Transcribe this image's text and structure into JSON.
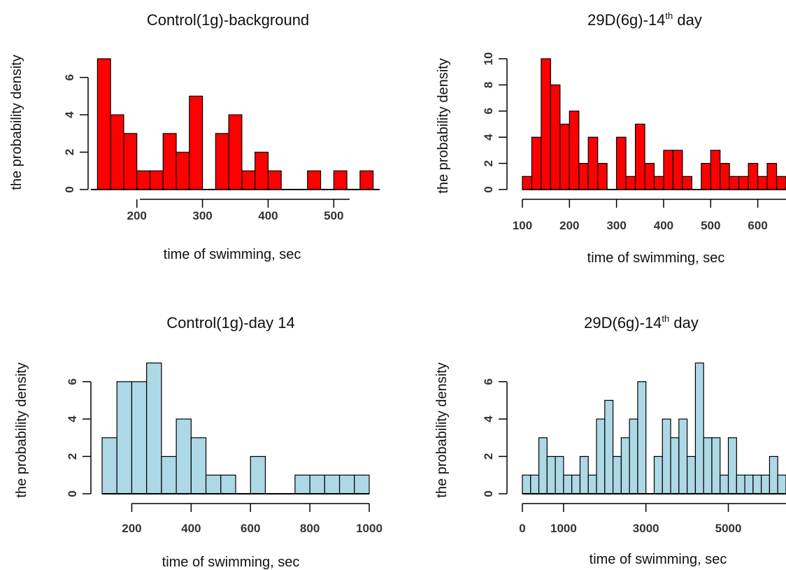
{
  "chart_data": [
    {
      "type": "bar",
      "title_main": "Control(1g)-background",
      "title_sup": "",
      "title_after": "",
      "xlabel": "time of swimming, sec",
      "ylabel": "the probability density",
      "fill": "#ff0000",
      "xlim": [
        130,
        570
      ],
      "ylim": [
        0,
        7
      ],
      "xticks": [
        200,
        300,
        400,
        500
      ],
      "yticks": [
        0,
        2,
        4,
        6
      ],
      "bin_width": 20,
      "bins": [
        {
          "x0": 140,
          "value": 7
        },
        {
          "x0": 160,
          "value": 4
        },
        {
          "x0": 180,
          "value": 3
        },
        {
          "x0": 200,
          "value": 1
        },
        {
          "x0": 220,
          "value": 1
        },
        {
          "x0": 240,
          "value": 3
        },
        {
          "x0": 260,
          "value": 2
        },
        {
          "x0": 280,
          "value": 5
        },
        {
          "x0": 320,
          "value": 3
        },
        {
          "x0": 340,
          "value": 4
        },
        {
          "x0": 360,
          "value": 1
        },
        {
          "x0": 380,
          "value": 2
        },
        {
          "x0": 400,
          "value": 1
        },
        {
          "x0": 460,
          "value": 1
        },
        {
          "x0": 500,
          "value": 1
        },
        {
          "x0": 540,
          "value": 1
        }
      ]
    },
    {
      "type": "bar",
      "title_main": "29D(6g)-14",
      "title_sup": "th",
      "title_after": " day",
      "xlabel": "time of swimming, sec",
      "ylabel": "the probability density",
      "fill": "#ff0000",
      "xlim": [
        100,
        660
      ],
      "ylim": [
        0,
        10
      ],
      "xticks": [
        100,
        200,
        300,
        400,
        500,
        600
      ],
      "yticks": [
        0,
        2,
        4,
        6,
        8,
        10
      ],
      "bin_width": 20,
      "bins": [
        {
          "x0": 100,
          "value": 1
        },
        {
          "x0": 120,
          "value": 4
        },
        {
          "x0": 140,
          "value": 10
        },
        {
          "x0": 160,
          "value": 8
        },
        {
          "x0": 180,
          "value": 5
        },
        {
          "x0": 200,
          "value": 6
        },
        {
          "x0": 220,
          "value": 2
        },
        {
          "x0": 240,
          "value": 4
        },
        {
          "x0": 260,
          "value": 2
        },
        {
          "x0": 300,
          "value": 4
        },
        {
          "x0": 320,
          "value": 1
        },
        {
          "x0": 340,
          "value": 5
        },
        {
          "x0": 360,
          "value": 2
        },
        {
          "x0": 380,
          "value": 1
        },
        {
          "x0": 400,
          "value": 3
        },
        {
          "x0": 420,
          "value": 3
        },
        {
          "x0": 440,
          "value": 1
        },
        {
          "x0": 480,
          "value": 2
        },
        {
          "x0": 500,
          "value": 3
        },
        {
          "x0": 520,
          "value": 2
        },
        {
          "x0": 540,
          "value": 1
        },
        {
          "x0": 560,
          "value": 1
        },
        {
          "x0": 580,
          "value": 2
        },
        {
          "x0": 600,
          "value": 1
        },
        {
          "x0": 620,
          "value": 2
        },
        {
          "x0": 640,
          "value": 1
        }
      ]
    },
    {
      "type": "bar",
      "title_main": "Control(1g)-day 14",
      "title_sup": "",
      "title_after": "",
      "xlabel": "time of swimming, sec",
      "ylabel": "the probability density",
      "fill": "#add8e6",
      "xlim": [
        100,
        1000
      ],
      "ylim": [
        0,
        7
      ],
      "xticks": [
        200,
        400,
        600,
        800,
        1000
      ],
      "yticks": [
        0,
        2,
        4,
        6
      ],
      "bin_width": 50,
      "bins": [
        {
          "x0": 100,
          "value": 3
        },
        {
          "x0": 150,
          "value": 6
        },
        {
          "x0": 200,
          "value": 6
        },
        {
          "x0": 250,
          "value": 7
        },
        {
          "x0": 300,
          "value": 2
        },
        {
          "x0": 350,
          "value": 4
        },
        {
          "x0": 400,
          "value": 3
        },
        {
          "x0": 450,
          "value": 1
        },
        {
          "x0": 500,
          "value": 1
        },
        {
          "x0": 600,
          "value": 2
        },
        {
          "x0": 750,
          "value": 1
        },
        {
          "x0": 800,
          "value": 1
        },
        {
          "x0": 850,
          "value": 1
        },
        {
          "x0": 900,
          "value": 1
        },
        {
          "x0": 950,
          "value": 1
        }
      ]
    },
    {
      "type": "bar",
      "title_main": "29D(6g)-14",
      "title_sup": "th",
      "title_after": " day",
      "xlabel": "time of swimming, sec",
      "ylabel": "the probability density",
      "fill": "#add8e6",
      "xlim": [
        0,
        6400
      ],
      "ylim": [
        0,
        7
      ],
      "xticks": [
        0,
        1000,
        3000,
        5000
      ],
      "yticks": [
        0,
        2,
        4,
        6
      ],
      "bin_width": 200,
      "bins": [
        {
          "x0": 0,
          "value": 1
        },
        {
          "x0": 200,
          "value": 1
        },
        {
          "x0": 400,
          "value": 3
        },
        {
          "x0": 600,
          "value": 2
        },
        {
          "x0": 800,
          "value": 2
        },
        {
          "x0": 1000,
          "value": 1
        },
        {
          "x0": 1200,
          "value": 1
        },
        {
          "x0": 1400,
          "value": 2
        },
        {
          "x0": 1600,
          "value": 1
        },
        {
          "x0": 1800,
          "value": 4
        },
        {
          "x0": 2000,
          "value": 5
        },
        {
          "x0": 2200,
          "value": 2
        },
        {
          "x0": 2400,
          "value": 3
        },
        {
          "x0": 2600,
          "value": 4
        },
        {
          "x0": 2800,
          "value": 6
        },
        {
          "x0": 3200,
          "value": 2
        },
        {
          "x0": 3400,
          "value": 4
        },
        {
          "x0": 3600,
          "value": 3
        },
        {
          "x0": 3800,
          "value": 4
        },
        {
          "x0": 4000,
          "value": 2
        },
        {
          "x0": 4200,
          "value": 7
        },
        {
          "x0": 4400,
          "value": 3
        },
        {
          "x0": 4600,
          "value": 3
        },
        {
          "x0": 4800,
          "value": 1
        },
        {
          "x0": 5000,
          "value": 3
        },
        {
          "x0": 5200,
          "value": 1
        },
        {
          "x0": 5400,
          "value": 1
        },
        {
          "x0": 5600,
          "value": 1
        },
        {
          "x0": 5800,
          "value": 1
        },
        {
          "x0": 6000,
          "value": 2
        },
        {
          "x0": 6200,
          "value": 1
        }
      ]
    }
  ]
}
